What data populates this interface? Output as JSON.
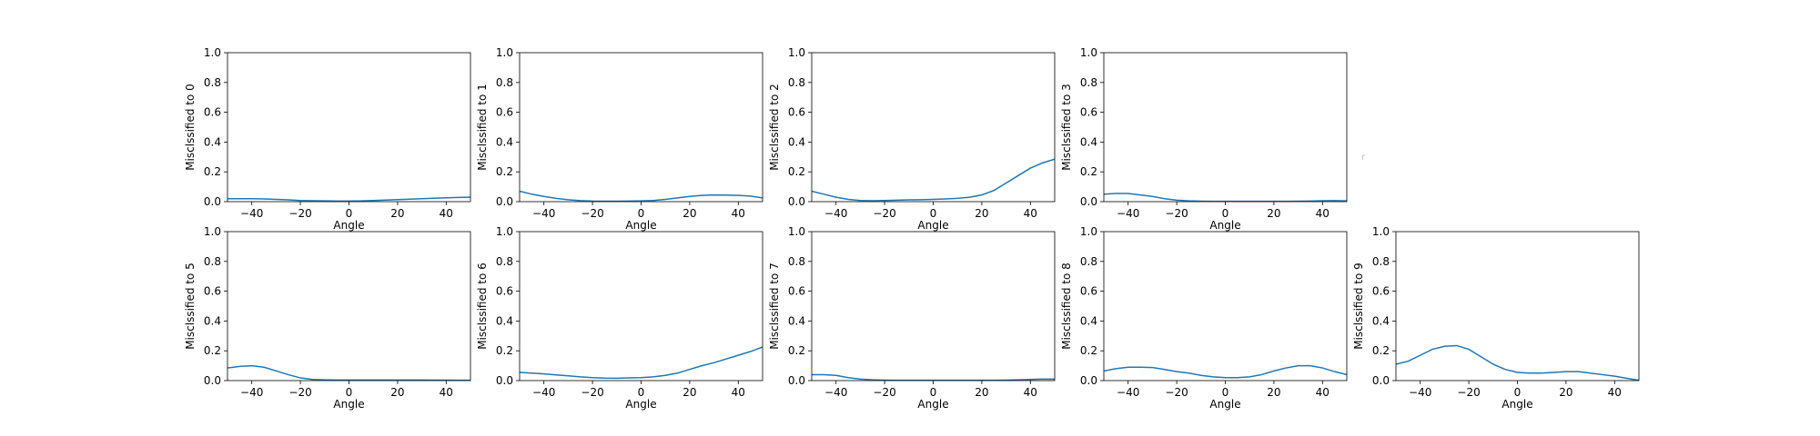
{
  "figure": {
    "line_color": "#1f77b4",
    "stray_mark": "r"
  },
  "chart_data": [
    {
      "type": "line",
      "xlabel": "Angle",
      "ylabel": "Misclssified to 0",
      "xlim": [
        -50,
        50
      ],
      "ylim": [
        0,
        1
      ],
      "xticks": [
        -40,
        -20,
        0,
        20,
        40
      ],
      "yticks": [
        0.0,
        0.2,
        0.4,
        0.6,
        0.8,
        1.0
      ],
      "xtick_labels": [
        "−40",
        "−20",
        "0",
        "20",
        "40"
      ],
      "ytick_labels": [
        "0.0",
        "0.2",
        "0.4",
        "0.6",
        "0.8",
        "1.0"
      ],
      "grid": false,
      "x": [
        -50,
        -45,
        -40,
        -35,
        -30,
        -25,
        -20,
        -15,
        -10,
        -5,
        0,
        5,
        10,
        15,
        20,
        25,
        30,
        35,
        40,
        45,
        50
      ],
      "y": [
        0.02,
        0.02,
        0.02,
        0.018,
        0.015,
        0.012,
        0.008,
        0.006,
        0.005,
        0.004,
        0.004,
        0.005,
        0.008,
        0.011,
        0.014,
        0.017,
        0.02,
        0.023,
        0.026,
        0.028,
        0.03
      ]
    },
    {
      "type": "line",
      "xlabel": "Angle",
      "ylabel": "Misclssified to 1",
      "xlim": [
        -50,
        50
      ],
      "ylim": [
        0,
        1
      ],
      "xticks": [
        -40,
        -20,
        0,
        20,
        40
      ],
      "yticks": [
        0.0,
        0.2,
        0.4,
        0.6,
        0.8,
        1.0
      ],
      "xtick_labels": [
        "−40",
        "−20",
        "0",
        "20",
        "40"
      ],
      "ytick_labels": [
        "0.0",
        "0.2",
        "0.4",
        "0.6",
        "0.8",
        "1.0"
      ],
      "grid": false,
      "x": [
        -50,
        -45,
        -40,
        -35,
        -30,
        -25,
        -20,
        -15,
        -10,
        -5,
        0,
        5,
        10,
        15,
        20,
        25,
        30,
        35,
        40,
        45,
        50
      ],
      "y": [
        0.07,
        0.05,
        0.035,
        0.022,
        0.013,
        0.007,
        0.004,
        0.003,
        0.003,
        0.004,
        0.005,
        0.008,
        0.015,
        0.025,
        0.035,
        0.042,
        0.045,
        0.044,
        0.042,
        0.037,
        0.025
      ]
    },
    {
      "type": "line",
      "xlabel": "Angle",
      "ylabel": "Misclssified to 2",
      "xlim": [
        -50,
        50
      ],
      "ylim": [
        0,
        1
      ],
      "xticks": [
        -40,
        -20,
        0,
        20,
        40
      ],
      "yticks": [
        0.0,
        0.2,
        0.4,
        0.6,
        0.8,
        1.0
      ],
      "xtick_labels": [
        "−40",
        "−20",
        "0",
        "20",
        "40"
      ],
      "ytick_labels": [
        "0.0",
        "0.2",
        "0.4",
        "0.6",
        "0.8",
        "1.0"
      ],
      "grid": false,
      "x": [
        -50,
        -45,
        -40,
        -35,
        -30,
        -25,
        -20,
        -15,
        -10,
        -5,
        0,
        5,
        10,
        15,
        20,
        25,
        30,
        35,
        40,
        45,
        50
      ],
      "y": [
        0.07,
        0.05,
        0.03,
        0.015,
        0.008,
        0.006,
        0.008,
        0.01,
        0.012,
        0.013,
        0.015,
        0.018,
        0.022,
        0.03,
        0.045,
        0.075,
        0.125,
        0.175,
        0.225,
        0.26,
        0.285
      ]
    },
    {
      "type": "line",
      "xlabel": "Angle",
      "ylabel": "Misclssified to 3",
      "xlim": [
        -50,
        50
      ],
      "ylim": [
        0,
        1
      ],
      "xticks": [
        -40,
        -20,
        0,
        20,
        40
      ],
      "yticks": [
        0.0,
        0.2,
        0.4,
        0.6,
        0.8,
        1.0
      ],
      "xtick_labels": [
        "−40",
        "−20",
        "0",
        "20",
        "40"
      ],
      "ytick_labels": [
        "0.0",
        "0.2",
        "0.4",
        "0.6",
        "0.8",
        "1.0"
      ],
      "grid": false,
      "x": [
        -50,
        -45,
        -40,
        -35,
        -30,
        -25,
        -20,
        -15,
        -10,
        -5,
        0,
        5,
        10,
        15,
        20,
        25,
        30,
        35,
        40,
        45,
        50
      ],
      "y": [
        0.05,
        0.055,
        0.055,
        0.045,
        0.035,
        0.02,
        0.01,
        0.005,
        0.003,
        0.002,
        0.002,
        0.002,
        0.002,
        0.002,
        0.002,
        0.002,
        0.003,
        0.004,
        0.006,
        0.007,
        0.005
      ]
    },
    {
      "type": "line",
      "xlabel": "Angle",
      "ylabel": "Misclssified to 5",
      "xlim": [
        -50,
        50
      ],
      "ylim": [
        0,
        1
      ],
      "xticks": [
        -40,
        -20,
        0,
        20,
        40
      ],
      "yticks": [
        0.0,
        0.2,
        0.4,
        0.6,
        0.8,
        1.0
      ],
      "xtick_labels": [
        "−40",
        "−20",
        "0",
        "20",
        "40"
      ],
      "ytick_labels": [
        "0.0",
        "0.2",
        "0.4",
        "0.6",
        "0.8",
        "1.0"
      ],
      "grid": false,
      "x": [
        -50,
        -45,
        -40,
        -35,
        -30,
        -25,
        -20,
        -15,
        -10,
        -5,
        0,
        5,
        10,
        15,
        20,
        25,
        30,
        35,
        40,
        45,
        50
      ],
      "y": [
        0.085,
        0.095,
        0.1,
        0.09,
        0.065,
        0.04,
        0.018,
        0.008,
        0.005,
        0.004,
        0.004,
        0.004,
        0.004,
        0.004,
        0.004,
        0.004,
        0.004,
        0.003,
        0.003,
        0.002,
        0.002
      ]
    },
    {
      "type": "line",
      "xlabel": "Angle",
      "ylabel": "Misclssified to 6",
      "xlim": [
        -50,
        50
      ],
      "ylim": [
        0,
        1
      ],
      "xticks": [
        -40,
        -20,
        0,
        20,
        40
      ],
      "yticks": [
        0.0,
        0.2,
        0.4,
        0.6,
        0.8,
        1.0
      ],
      "xtick_labels": [
        "−40",
        "−20",
        "0",
        "20",
        "40"
      ],
      "ytick_labels": [
        "0.0",
        "0.2",
        "0.4",
        "0.6",
        "0.8",
        "1.0"
      ],
      "grid": false,
      "x": [
        -50,
        -45,
        -40,
        -35,
        -30,
        -25,
        -20,
        -15,
        -10,
        -5,
        0,
        5,
        10,
        15,
        20,
        25,
        30,
        35,
        40,
        45,
        50
      ],
      "y": [
        0.055,
        0.05,
        0.045,
        0.038,
        0.032,
        0.025,
        0.02,
        0.017,
        0.016,
        0.018,
        0.02,
        0.025,
        0.035,
        0.05,
        0.075,
        0.1,
        0.12,
        0.145,
        0.17,
        0.195,
        0.225
      ]
    },
    {
      "type": "line",
      "xlabel": "Angle",
      "ylabel": "Misclssified to 7",
      "xlim": [
        -50,
        50
      ],
      "ylim": [
        0,
        1
      ],
      "xticks": [
        -40,
        -20,
        0,
        20,
        40
      ],
      "yticks": [
        0.0,
        0.2,
        0.4,
        0.6,
        0.8,
        1.0
      ],
      "xtick_labels": [
        "−40",
        "−20",
        "0",
        "20",
        "40"
      ],
      "ytick_labels": [
        "0.0",
        "0.2",
        "0.4",
        "0.6",
        "0.8",
        "1.0"
      ],
      "grid": false,
      "x": [
        -50,
        -45,
        -40,
        -35,
        -30,
        -25,
        -20,
        -15,
        -10,
        -5,
        0,
        5,
        10,
        15,
        20,
        25,
        30,
        35,
        40,
        45,
        50
      ],
      "y": [
        0.04,
        0.04,
        0.035,
        0.02,
        0.01,
        0.005,
        0.003,
        0.002,
        0.002,
        0.002,
        0.002,
        0.002,
        0.002,
        0.002,
        0.002,
        0.002,
        0.003,
        0.005,
        0.008,
        0.01,
        0.01
      ]
    },
    {
      "type": "line",
      "xlabel": "Angle",
      "ylabel": "Misclssified to 8",
      "xlim": [
        -50,
        50
      ],
      "ylim": [
        0,
        1
      ],
      "xticks": [
        -40,
        -20,
        0,
        20,
        40
      ],
      "yticks": [
        0.0,
        0.2,
        0.4,
        0.6,
        0.8,
        1.0
      ],
      "xtick_labels": [
        "−40",
        "−20",
        "0",
        "20",
        "40"
      ],
      "ytick_labels": [
        "0.0",
        "0.2",
        "0.4",
        "0.6",
        "0.8",
        "1.0"
      ],
      "grid": false,
      "x": [
        -50,
        -45,
        -40,
        -35,
        -30,
        -25,
        -20,
        -15,
        -10,
        -5,
        0,
        5,
        10,
        15,
        20,
        25,
        30,
        35,
        40,
        45,
        50
      ],
      "y": [
        0.065,
        0.08,
        0.09,
        0.09,
        0.088,
        0.075,
        0.06,
        0.05,
        0.035,
        0.025,
        0.02,
        0.02,
        0.025,
        0.04,
        0.065,
        0.085,
        0.1,
        0.1,
        0.085,
        0.06,
        0.04
      ]
    },
    {
      "type": "line",
      "xlabel": "Angle",
      "ylabel": "Misclssified to 9",
      "xlim": [
        -50,
        50
      ],
      "ylim": [
        0,
        1
      ],
      "xticks": [
        -40,
        -20,
        0,
        20,
        40
      ],
      "yticks": [
        0.0,
        0.2,
        0.4,
        0.6,
        0.8,
        1.0
      ],
      "xtick_labels": [
        "−40",
        "−20",
        "0",
        "20",
        "40"
      ],
      "ytick_labels": [
        "0.0",
        "0.2",
        "0.4",
        "0.6",
        "0.8",
        "1.0"
      ],
      "grid": false,
      "x": [
        -50,
        -45,
        -40,
        -35,
        -30,
        -25,
        -20,
        -15,
        -10,
        -5,
        0,
        5,
        10,
        15,
        20,
        25,
        30,
        35,
        40,
        45,
        50
      ],
      "y": [
        0.11,
        0.13,
        0.17,
        0.21,
        0.23,
        0.235,
        0.21,
        0.16,
        0.11,
        0.075,
        0.055,
        0.05,
        0.05,
        0.055,
        0.06,
        0.06,
        0.05,
        0.04,
        0.03,
        0.015,
        0.002
      ]
    }
  ]
}
